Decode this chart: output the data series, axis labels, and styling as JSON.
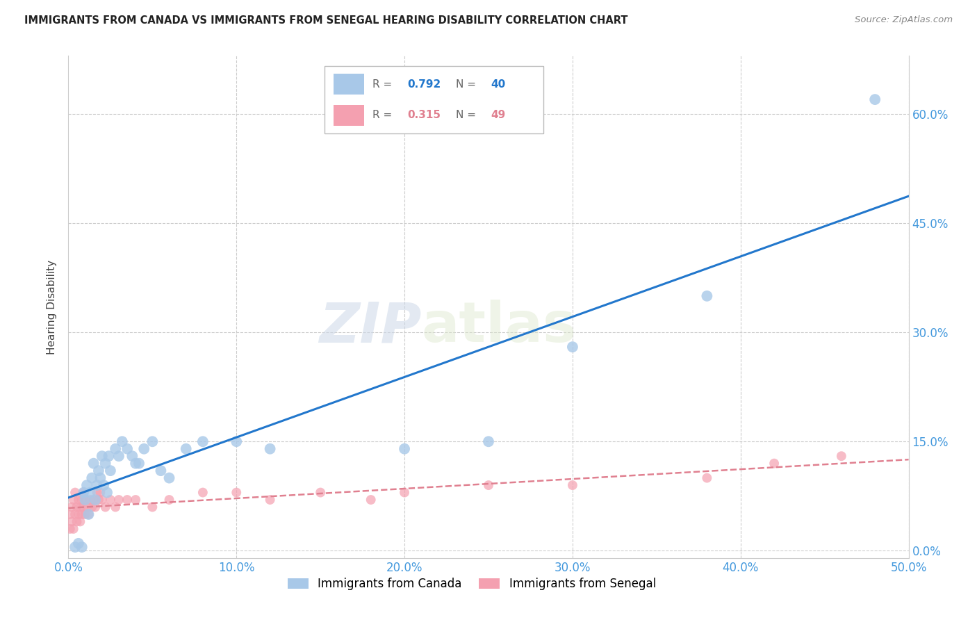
{
  "title": "IMMIGRANTS FROM CANADA VS IMMIGRANTS FROM SENEGAL HEARING DISABILITY CORRELATION CHART",
  "source": "Source: ZipAtlas.com",
  "ylabel": "Hearing Disability",
  "legend_canada": "Immigrants from Canada",
  "legend_senegal": "Immigrants from Senegal",
  "r_canada": 0.792,
  "n_canada": 40,
  "r_senegal": 0.315,
  "n_senegal": 49,
  "canada_color": "#a8c8e8",
  "senegal_color": "#f4a0b0",
  "canada_line_color": "#2277cc",
  "senegal_line_color": "#e08090",
  "watermark_zip": "ZIP",
  "watermark_atlas": "atlas",
  "xlim": [
    0.0,
    0.5
  ],
  "ylim": [
    -0.01,
    0.68
  ],
  "xticks": [
    0.0,
    0.1,
    0.2,
    0.3,
    0.4,
    0.5
  ],
  "yticks": [
    0.0,
    0.15,
    0.3,
    0.45,
    0.6
  ],
  "xtick_labels": [
    "0.0%",
    "10.0%",
    "20.0%",
    "30.0%",
    "40.0%",
    "50.0%"
  ],
  "ytick_labels": [
    "0.0%",
    "15.0%",
    "30.0%",
    "45.0%",
    "60.0%"
  ],
  "canada_x": [
    0.004,
    0.006,
    0.008,
    0.009,
    0.01,
    0.011,
    0.012,
    0.013,
    0.014,
    0.015,
    0.016,
    0.017,
    0.018,
    0.019,
    0.02,
    0.021,
    0.022,
    0.023,
    0.024,
    0.025,
    0.028,
    0.03,
    0.032,
    0.035,
    0.038,
    0.04,
    0.042,
    0.045,
    0.05,
    0.055,
    0.06,
    0.07,
    0.08,
    0.1,
    0.12,
    0.2,
    0.25,
    0.3,
    0.38,
    0.48
  ],
  "canada_y": [
    0.005,
    0.01,
    0.005,
    0.08,
    0.07,
    0.09,
    0.05,
    0.08,
    0.1,
    0.12,
    0.07,
    0.09,
    0.11,
    0.1,
    0.13,
    0.09,
    0.12,
    0.08,
    0.13,
    0.11,
    0.14,
    0.13,
    0.15,
    0.14,
    0.13,
    0.12,
    0.12,
    0.14,
    0.15,
    0.11,
    0.1,
    0.14,
    0.15,
    0.15,
    0.14,
    0.14,
    0.15,
    0.28,
    0.35,
    0.62
  ],
  "senegal_x": [
    0.001,
    0.001,
    0.002,
    0.002,
    0.003,
    0.003,
    0.004,
    0.004,
    0.005,
    0.005,
    0.006,
    0.006,
    0.007,
    0.007,
    0.008,
    0.008,
    0.009,
    0.009,
    0.01,
    0.01,
    0.011,
    0.012,
    0.013,
    0.014,
    0.015,
    0.016,
    0.017,
    0.018,
    0.019,
    0.02,
    0.022,
    0.025,
    0.028,
    0.03,
    0.035,
    0.04,
    0.05,
    0.06,
    0.08,
    0.1,
    0.12,
    0.15,
    0.18,
    0.2,
    0.25,
    0.3,
    0.38,
    0.42,
    0.46
  ],
  "senegal_y": [
    0.03,
    0.05,
    0.04,
    0.06,
    0.03,
    0.07,
    0.05,
    0.08,
    0.04,
    0.06,
    0.05,
    0.07,
    0.04,
    0.06,
    0.05,
    0.07,
    0.06,
    0.08,
    0.05,
    0.07,
    0.06,
    0.05,
    0.07,
    0.06,
    0.07,
    0.06,
    0.08,
    0.07,
    0.08,
    0.07,
    0.06,
    0.07,
    0.06,
    0.07,
    0.07,
    0.07,
    0.06,
    0.07,
    0.08,
    0.08,
    0.07,
    0.08,
    0.07,
    0.08,
    0.09,
    0.09,
    0.1,
    0.12,
    0.13
  ]
}
